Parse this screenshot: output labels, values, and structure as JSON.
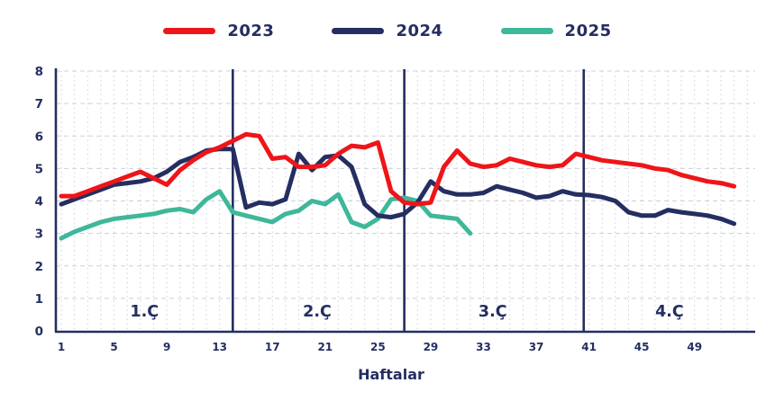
{
  "legend": {
    "items": [
      {
        "label": "2023",
        "color": "#ee1519"
      },
      {
        "label": "2024",
        "color": "#242e61"
      },
      {
        "label": "2025",
        "color": "#3eb79a"
      }
    ]
  },
  "chart_data": {
    "type": "line",
    "title": "",
    "xlabel": "Haftalar",
    "ylabel": "",
    "xlim": [
      1,
      52
    ],
    "ylim": [
      0,
      8
    ],
    "x_ticks": [
      1,
      5,
      9,
      13,
      17,
      21,
      25,
      29,
      33,
      37,
      41,
      45,
      49
    ],
    "y_ticks": [
      0,
      1,
      2,
      3,
      4,
      5,
      6,
      7,
      8
    ],
    "grid": "weekly dotted vertical + unit dashed horizontal",
    "legend_position": "top",
    "axis_color": "#242e61",
    "grid_color": "#ccd0dc",
    "quarter_dividers_at_weeks": [
      14,
      27,
      40.6
    ],
    "quarter_labels": [
      {
        "label": "1.Ç",
        "week": 7.3
      },
      {
        "label": "2.Ç",
        "week": 20.4
      },
      {
        "label": "3.Ç",
        "week": 33.7
      },
      {
        "label": "4.Ç",
        "week": 47.1
      }
    ],
    "series": [
      {
        "name": "2023",
        "color": "#ee1519",
        "start_week": 1,
        "values": [
          4.15,
          4.15,
          4.3,
          4.45,
          4.6,
          4.75,
          4.9,
          4.7,
          4.5,
          4.95,
          5.25,
          5.5,
          5.65,
          5.85,
          6.05,
          6.0,
          5.3,
          5.35,
          5.05,
          5.05,
          5.1,
          5.45,
          5.7,
          5.65,
          5.8,
          4.3,
          3.95,
          3.9,
          3.95,
          5.05,
          5.55,
          5.15,
          5.05,
          5.1,
          5.3,
          5.2,
          5.1,
          5.05,
          5.1,
          5.45,
          5.35,
          5.25,
          5.2,
          5.15,
          5.1,
          5.0,
          4.95,
          4.8,
          4.7,
          4.6,
          4.55,
          4.45
        ]
      },
      {
        "name": "2024",
        "color": "#242e61",
        "start_week": 1,
        "values": [
          3.9,
          4.05,
          4.2,
          4.35,
          4.5,
          4.55,
          4.6,
          4.7,
          4.9,
          5.2,
          5.35,
          5.55,
          5.6,
          5.6,
          3.8,
          3.95,
          3.9,
          4.05,
          5.45,
          4.95,
          5.35,
          5.4,
          5.05,
          3.9,
          3.55,
          3.5,
          3.6,
          3.95,
          4.6,
          4.3,
          4.2,
          4.2,
          4.25,
          4.45,
          4.35,
          4.25,
          4.1,
          4.15,
          4.3,
          4.2,
          4.18,
          4.12,
          4.0,
          3.65,
          3.55,
          3.55,
          3.72,
          3.65,
          3.6,
          3.55,
          3.45,
          3.3
        ]
      },
      {
        "name": "2025",
        "color": "#3eb79a",
        "start_week": 1,
        "values": [
          2.85,
          3.05,
          3.2,
          3.35,
          3.45,
          3.5,
          3.55,
          3.6,
          3.7,
          3.75,
          3.65,
          4.05,
          4.3,
          3.65,
          3.55,
          3.45,
          3.35,
          3.6,
          3.7,
          4.0,
          3.9,
          4.2,
          3.35,
          3.2,
          3.45,
          4.05,
          4.1,
          4.0,
          3.55,
          3.5,
          3.45,
          3.0
        ]
      }
    ]
  }
}
